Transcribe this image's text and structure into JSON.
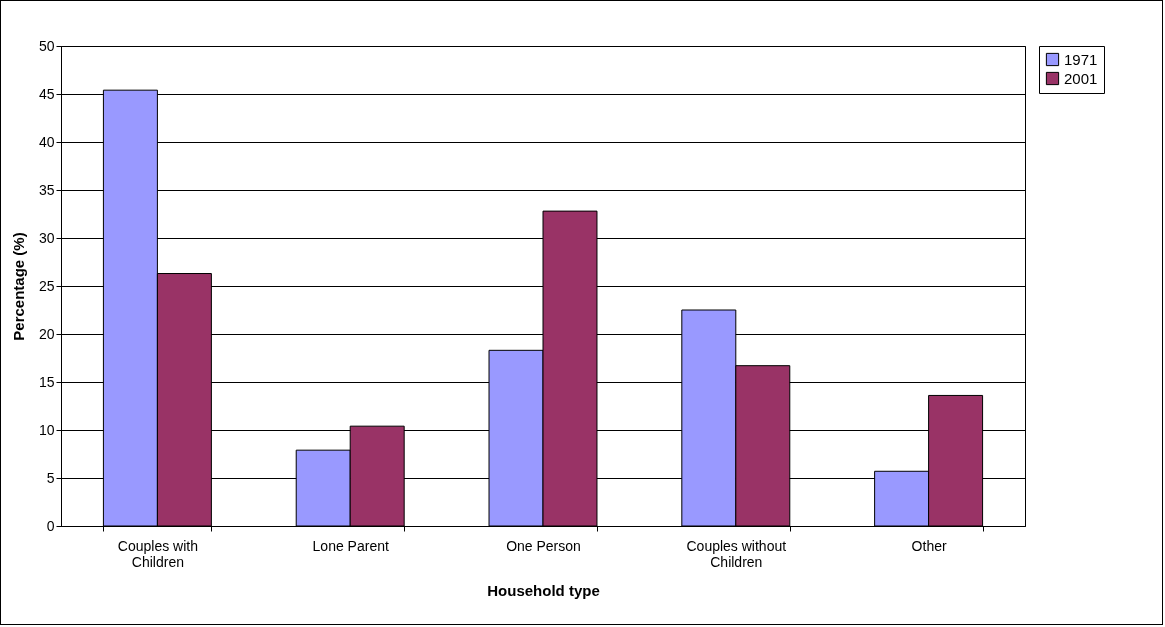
{
  "chart_data": {
    "type": "bar",
    "xlabel": "Household type",
    "ylabel": "Percentage (%)",
    "categories": [
      "Couples with Children",
      "Lone Parent",
      "One Person",
      "Couples without Children",
      "Other"
    ],
    "series": [
      {
        "name": "1971",
        "color": "#9999ff",
        "values": [
          45.4,
          7.9,
          18.3,
          22.5,
          5.7
        ]
      },
      {
        "name": "2001",
        "color": "#993366",
        "values": [
          26.3,
          10.4,
          32.8,
          16.7,
          13.6
        ]
      }
    ],
    "ylim": [
      0,
      50
    ],
    "yticks": [
      0,
      5,
      10,
      15,
      20,
      25,
      30,
      35,
      40,
      45,
      50
    ],
    "grid": "y",
    "legend": "right"
  }
}
